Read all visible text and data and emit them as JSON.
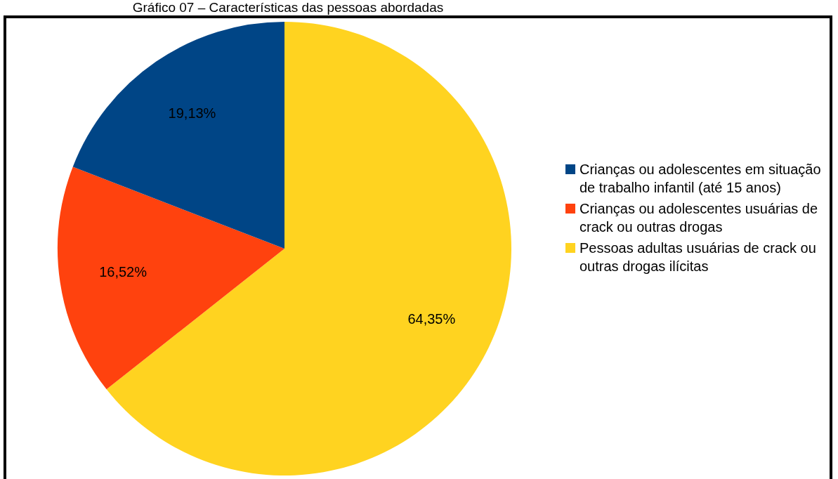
{
  "chart_data": {
    "type": "pie",
    "title": "Gráfico 07 – Características das pessoas abordadas",
    "categories": [
      "Crianças ou adolescentes em situação de trabalho infantil (até 15 anos)",
      "Crianças ou adolescentes usuárias de crack ou outras drogas",
      "Pessoas adultas usuárias de crack ou outras drogas ilícitas"
    ],
    "values": [
      19.13,
      16.52,
      64.35
    ],
    "colors": [
      "#004586",
      "#ff420e",
      "#ffd320"
    ],
    "value_labels": [
      "19,13%",
      "16,52%",
      "64,35%"
    ],
    "legend": "right"
  }
}
